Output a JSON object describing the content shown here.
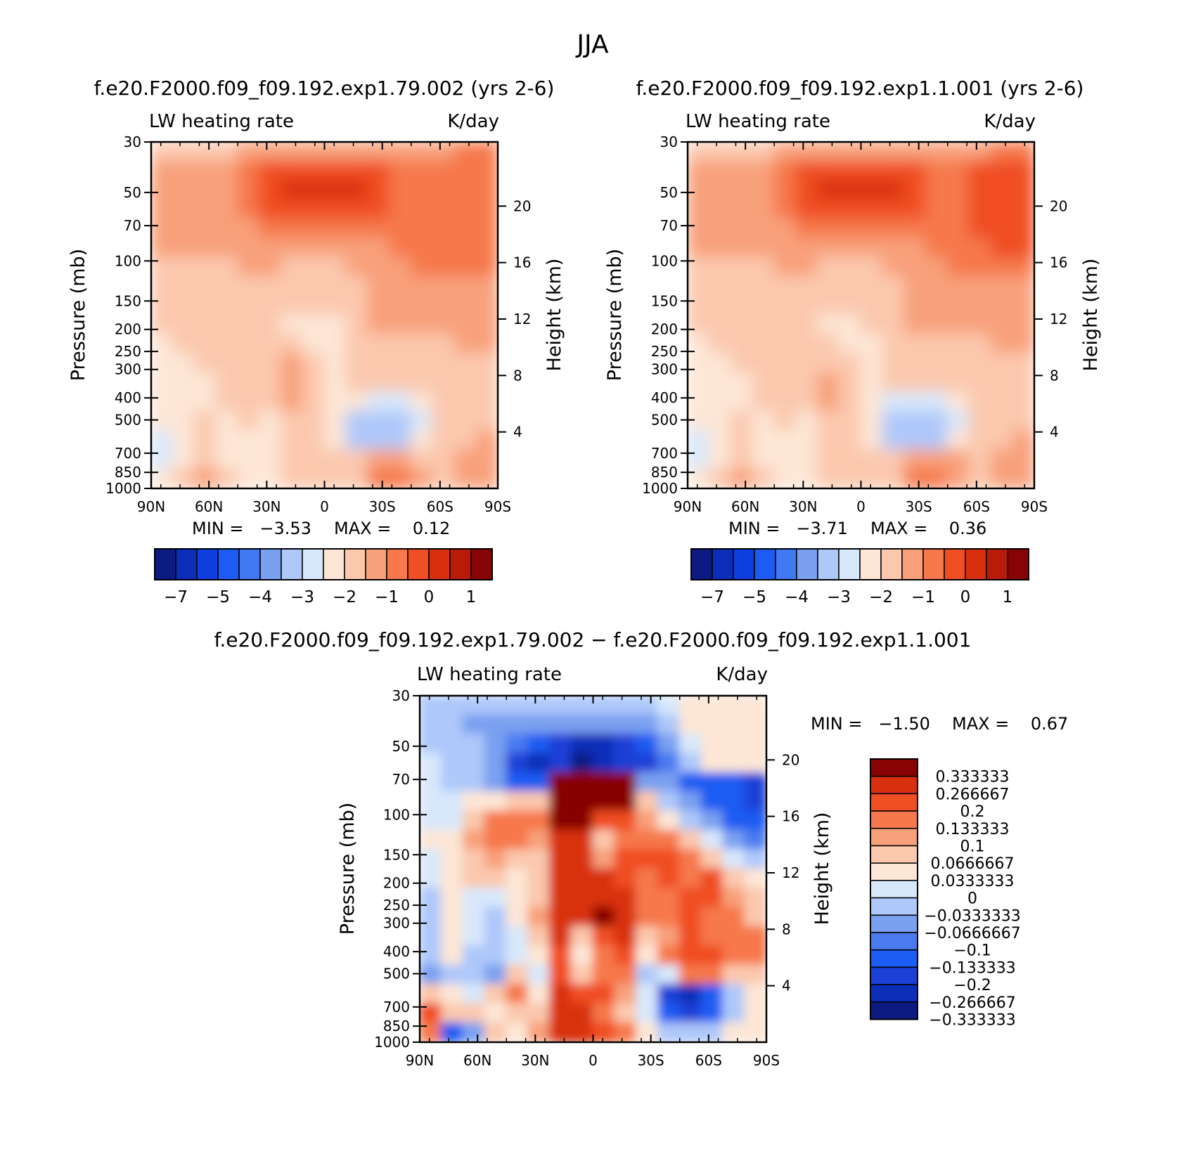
{
  "figure_title": "JJA",
  "colors": {
    "abs_palette": [
      "#0c1a82",
      "#0b2db8",
      "#0e3fe0",
      "#1c5cf2",
      "#4079f2",
      "#7aa0f0",
      "#aec8fa",
      "#d8e8fb",
      "#fde6d6",
      "#fbc8ae",
      "#f8a07a",
      "#f6784c",
      "#f04e23",
      "#d8300f",
      "#b81c09",
      "#880303"
    ],
    "diff_palette": [
      "#0c1a82",
      "#0b2db8",
      "#1c3fd6",
      "#1c5cf2",
      "#4a7af0",
      "#7aa0f0",
      "#aec8fa",
      "#d8e8fb",
      "#fde6d6",
      "#fbc8ae",
      "#f8a07a",
      "#f6784c",
      "#f04e23",
      "#d8300f",
      "#880303"
    ]
  },
  "chart_data": [
    {
      "type": "heatmap",
      "title": "f.e20.F2000.f09_f09.192.exp1.79.002 (yrs 2-6)",
      "left_label": "LW heating rate",
      "right_label": "K/day",
      "ylabel": "Pressure (mb)",
      "ylabel_right": "Height (km)",
      "x_ticks": [
        "90N",
        "60N",
        "30N",
        "0",
        "30S",
        "60S",
        "90S"
      ],
      "y_ticks": [
        "30",
        "50",
        "70",
        "100",
        "150",
        "200",
        "250",
        "300",
        "400",
        "500",
        "700",
        "850",
        "1000"
      ],
      "y_ticks_right": [
        "20",
        "16",
        "12",
        "8",
        "4"
      ],
      "ylim": [
        1000,
        30
      ],
      "min_text": "MIN =   -3.53",
      "max_text": "MAX =    0.12",
      "colorbar_levels": [
        "-7",
        "-5",
        "-4",
        "-3",
        "-2",
        "-1",
        "0",
        "1"
      ],
      "field": [
        [
          -1.6,
          -1.6,
          -1.6,
          -1.6,
          -1.4,
          -1.2,
          -1.1,
          -1.1,
          -1.1,
          -1.1,
          -1.3,
          -1.4,
          -1.4,
          -1.2,
          -1.0,
          -1.0
        ],
        [
          -1.2,
          -1.2,
          -1.2,
          -1.2,
          -0.8,
          -0.4,
          -0.2,
          -0.3,
          -0.4,
          -0.2,
          -0.5,
          -0.9,
          -0.7,
          -0.6,
          -0.6,
          -0.6
        ],
        [
          -1.2,
          -1.2,
          -1.2,
          -1.2,
          -0.8,
          -0.3,
          0.1,
          0.2,
          0.1,
          0.2,
          -0.4,
          -0.8,
          -0.7,
          -0.6,
          -0.6,
          -0.6
        ],
        [
          -1.2,
          -1.2,
          -1.2,
          -1.1,
          -0.8,
          -0.4,
          -0.4,
          -0.4,
          -0.4,
          -0.4,
          -0.4,
          -0.8,
          -0.7,
          -0.6,
          -0.6,
          -0.6
        ],
        [
          -1.2,
          -1.2,
          -1.2,
          -1.2,
          -1.1,
          -1.0,
          -1.0,
          -0.7,
          -0.9,
          -0.9,
          -1.0,
          -0.8,
          -0.7,
          -0.6,
          -0.6,
          -0.6
        ],
        [
          -1.3,
          -1.3,
          -1.3,
          -1.3,
          -1.3,
          -1.3,
          -1.3,
          -1.3,
          -1.3,
          -1.3,
          -1.3,
          -1.0,
          -0.8,
          -0.6,
          -0.6,
          -0.6
        ],
        [
          -1.6,
          -1.6,
          -1.6,
          -1.6,
          -1.5,
          -1.5,
          -1.6,
          -1.8,
          -1.6,
          -1.5,
          -1.4,
          -1.2,
          -1.0,
          -1.0,
          -1.0,
          -1.0
        ],
        [
          -1.8,
          -1.8,
          -1.7,
          -1.7,
          -1.6,
          -1.6,
          -1.7,
          -1.8,
          -1.7,
          -1.6,
          -1.4,
          -1.3,
          -1.2,
          -1.2,
          -1.2,
          -1.2
        ],
        [
          -1.9,
          -1.8,
          -1.8,
          -1.8,
          -1.7,
          -1.7,
          -1.8,
          -2.0,
          -1.9,
          -1.7,
          -1.5,
          -1.4,
          -1.3,
          -1.3,
          -1.3,
          -1.3
        ],
        [
          -2.0,
          -1.9,
          -1.9,
          -1.9,
          -1.8,
          -1.8,
          -2.2,
          -2.2,
          -2.1,
          -1.7,
          -1.5,
          -1.4,
          -1.4,
          -1.4,
          -1.4,
          -1.4
        ],
        [
          -2.1,
          -2.0,
          -2.0,
          -1.9,
          -1.9,
          -1.8,
          -1.8,
          -2.2,
          -2.3,
          -1.9,
          -1.6,
          -1.6,
          -1.6,
          -1.6,
          -1.5,
          -1.5
        ],
        [
          -2.3,
          -2.1,
          -2.0,
          -1.8,
          -1.9,
          -1.8,
          -1.5,
          -2.0,
          -2.1,
          -1.9,
          -1.7,
          -1.7,
          -1.7,
          -1.7,
          -1.6,
          -1.6
        ],
        [
          -2.3,
          -2.2,
          -2.1,
          -1.8,
          -2.0,
          -1.9,
          -1.4,
          -1.9,
          -2.1,
          -2.0,
          -1.8,
          -1.8,
          -1.8,
          -1.8,
          -1.7,
          -1.7
        ],
        [
          -2.3,
          -2.2,
          -2.1,
          -1.9,
          -2.0,
          -2.0,
          -1.5,
          -2.0,
          -2.1,
          -2.5,
          -2.8,
          -2.7,
          -2.3,
          -1.8,
          -1.7,
          -1.7
        ],
        [
          -2.5,
          -2.3,
          -2.0,
          -2.1,
          -2.0,
          -2.1,
          -1.6,
          -2.0,
          -2.2,
          -3.2,
          -3.3,
          -3.2,
          -2.6,
          -1.9,
          -1.7,
          -1.6
        ],
        [
          -2.7,
          -2.4,
          -2.0,
          -2.2,
          -2.2,
          -2.2,
          -1.8,
          -2.0,
          -2.2,
          -3.1,
          -3.3,
          -3.1,
          -2.5,
          -1.9,
          -1.6,
          -1.5
        ],
        [
          -2.6,
          -2.3,
          -1.6,
          -2.1,
          -2.3,
          -2.2,
          -1.9,
          -2.0,
          -2.0,
          -1.9,
          -1.4,
          -1.3,
          -1.6,
          -1.8,
          -1.5,
          -1.5
        ],
        [
          -2.2,
          -2.0,
          -1.3,
          -2.0,
          -2.5,
          -2.1,
          -2.0,
          -1.9,
          -1.7,
          -1.6,
          -1.0,
          -0.8,
          -1.2,
          -1.6,
          -1.4,
          -1.4
        ]
      ]
    },
    {
      "type": "heatmap",
      "title": "f.e20.F2000.f09_f09.192.exp1.1.001 (yrs 2-6)",
      "left_label": "LW heating rate",
      "right_label": "K/day",
      "ylabel": "Pressure (mb)",
      "ylabel_right": "Height (km)",
      "x_ticks": [
        "90N",
        "60N",
        "30N",
        "0",
        "30S",
        "60S",
        "90S"
      ],
      "y_ticks": [
        "30",
        "50",
        "70",
        "100",
        "150",
        "200",
        "250",
        "300",
        "400",
        "500",
        "700",
        "850",
        "1000"
      ],
      "y_ticks_right": [
        "20",
        "16",
        "12",
        "8",
        "4"
      ],
      "ylim": [
        1000,
        30
      ],
      "min_text": "MIN =   -3.71",
      "max_text": "MAX =    0.36",
      "colorbar_levels": [
        "-7",
        "-5",
        "-4",
        "-3",
        "-2",
        "-1",
        "0",
        "1"
      ],
      "field": [
        [
          -1.6,
          -1.6,
          -1.6,
          -1.6,
          -1.4,
          -1.2,
          -1.1,
          -1.1,
          -1.1,
          -1.1,
          -1.3,
          -1.4,
          -1.4,
          -1.2,
          -1.0,
          -1.0
        ],
        [
          -1.2,
          -1.2,
          -1.2,
          -1.2,
          -0.8,
          -0.4,
          -0.2,
          -0.2,
          -0.2,
          -0.2,
          -0.5,
          -0.8,
          -0.6,
          -0.5,
          -0.5,
          -0.5
        ],
        [
          -1.2,
          -1.2,
          -1.2,
          -1.2,
          -0.8,
          -0.3,
          0.1,
          0.2,
          0.2,
          0.1,
          -0.4,
          -0.8,
          -0.6,
          -0.5,
          -0.5,
          -0.5
        ],
        [
          -1.2,
          -1.2,
          -1.2,
          -1.1,
          -0.8,
          -0.5,
          -0.4,
          -0.4,
          -0.4,
          -0.4,
          -0.5,
          -0.8,
          -0.6,
          -0.5,
          -0.5,
          -0.5
        ],
        [
          -1.2,
          -1.2,
          -1.2,
          -1.2,
          -1.1,
          -1.0,
          -1.0,
          -0.9,
          -1.0,
          -1.0,
          -0.9,
          -0.8,
          -0.6,
          -0.5,
          -0.5,
          -0.5
        ],
        [
          -1.3,
          -1.3,
          -1.3,
          -1.3,
          -1.3,
          -1.3,
          -1.3,
          -1.3,
          -1.3,
          -1.3,
          -1.2,
          -1.0,
          -0.7,
          -0.6,
          -0.5,
          -0.5
        ],
        [
          -1.6,
          -1.6,
          -1.6,
          -1.6,
          -1.5,
          -1.5,
          -1.6,
          -1.7,
          -1.6,
          -1.5,
          -1.4,
          -1.2,
          -1.0,
          -0.9,
          -0.9,
          -0.9
        ],
        [
          -1.8,
          -1.8,
          -1.7,
          -1.7,
          -1.6,
          -1.7,
          -1.8,
          -1.8,
          -1.7,
          -1.6,
          -1.4,
          -1.3,
          -1.2,
          -1.1,
          -1.1,
          -1.1
        ],
        [
          -1.9,
          -1.8,
          -1.8,
          -1.8,
          -1.7,
          -1.8,
          -1.9,
          -2.0,
          -1.9,
          -1.7,
          -1.5,
          -1.4,
          -1.3,
          -1.3,
          -1.3,
          -1.3
        ],
        [
          -2.0,
          -1.9,
          -1.9,
          -1.9,
          -1.8,
          -1.9,
          -2.2,
          -2.1,
          -2.0,
          -1.7,
          -1.5,
          -1.4,
          -1.4,
          -1.4,
          -1.4,
          -1.4
        ],
        [
          -2.1,
          -2.0,
          -2.0,
          -1.9,
          -1.9,
          -1.9,
          -1.9,
          -2.1,
          -2.2,
          -1.9,
          -1.6,
          -1.6,
          -1.6,
          -1.6,
          -1.5,
          -1.5
        ],
        [
          -2.3,
          -2.1,
          -2.0,
          -1.8,
          -1.9,
          -1.9,
          -1.6,
          -1.9,
          -2.1,
          -1.9,
          -1.7,
          -1.7,
          -1.7,
          -1.7,
          -1.6,
          -1.6
        ],
        [
          -2.3,
          -2.2,
          -2.1,
          -1.8,
          -2.0,
          -1.9,
          -1.4,
          -1.8,
          -2.1,
          -2.0,
          -1.8,
          -1.8,
          -1.8,
          -1.8,
          -1.7,
          -1.7
        ],
        [
          -2.3,
          -2.2,
          -2.1,
          -1.9,
          -2.0,
          -2.0,
          -1.5,
          -1.9,
          -2.2,
          -2.6,
          -2.8,
          -2.7,
          -2.3,
          -1.8,
          -1.7,
          -1.7
        ],
        [
          -2.5,
          -2.3,
          -2.0,
          -2.1,
          -2.0,
          -2.1,
          -1.6,
          -1.9,
          -2.3,
          -3.3,
          -3.3,
          -3.2,
          -2.6,
          -1.9,
          -1.7,
          -1.6
        ],
        [
          -2.7,
          -2.4,
          -2.0,
          -2.2,
          -2.2,
          -2.2,
          -1.7,
          -1.9,
          -2.3,
          -3.2,
          -3.3,
          -3.1,
          -2.5,
          -1.9,
          -1.6,
          -1.5
        ],
        [
          -2.6,
          -2.3,
          -1.7,
          -2.1,
          -2.3,
          -2.2,
          -1.9,
          -1.9,
          -2.0,
          -1.9,
          -1.4,
          -1.2,
          -1.5,
          -1.8,
          -1.5,
          -1.5
        ],
        [
          -2.2,
          -2.0,
          -1.3,
          -2.0,
          -2.5,
          -2.1,
          -2.0,
          -1.9,
          -1.8,
          -1.6,
          -1.0,
          -0.8,
          -1.2,
          -1.6,
          -1.4,
          -1.4
        ]
      ]
    },
    {
      "type": "heatmap",
      "title": "f.e20.F2000.f09_f09.192.exp1.79.002 - f.e20.F2000.f09_f09.192.exp1.1.001",
      "left_label": "LW heating rate",
      "right_label": "K/day",
      "ylabel": "Pressure (mb)",
      "ylabel_right": "Height (km)",
      "x_ticks": [
        "90N",
        "60N",
        "30N",
        "0",
        "30S",
        "60S",
        "90S"
      ],
      "y_ticks": [
        "30",
        "50",
        "70",
        "100",
        "150",
        "200",
        "250",
        "300",
        "400",
        "500",
        "700",
        "850",
        "1000"
      ],
      "y_ticks_right": [
        "20",
        "16",
        "12",
        "8",
        "4"
      ],
      "ylim": [
        1000,
        30
      ],
      "min_text": "MIN =   -1.50",
      "max_text": "MAX =    0.67",
      "colorbar_levels": [
        "0.333333",
        "0.266667",
        "0.2",
        "0.133333",
        "0.1",
        "0.0666667",
        "0.0333333",
        "0",
        "-0.0333333",
        "-0.0666667",
        "-0.1",
        "-0.133333",
        "-0.2",
        "-0.266667",
        "-0.333333"
      ],
      "field": [
        [
          -0.05,
          -0.05,
          -0.04,
          -0.05,
          -0.06,
          -0.06,
          -0.05,
          -0.05,
          -0.05,
          -0.06,
          -0.05,
          -0.03,
          0.02,
          0.02,
          0.01,
          0.01
        ],
        [
          -0.04,
          -0.06,
          -0.08,
          -0.07,
          -0.07,
          -0.08,
          -0.07,
          -0.08,
          -0.09,
          -0.09,
          -0.07,
          -0.04,
          0.01,
          0.02,
          0.02,
          0.02
        ],
        [
          -0.04,
          -0.05,
          -0.06,
          -0.07,
          -0.12,
          -0.14,
          -0.22,
          -0.32,
          -0.32,
          -0.22,
          -0.14,
          -0.09,
          -0.02,
          0.02,
          0.02,
          0.02
        ],
        [
          -0.03,
          -0.04,
          -0.05,
          -0.09,
          -0.24,
          -0.3,
          -0.26,
          -0.34,
          -0.32,
          -0.26,
          -0.22,
          -0.12,
          -0.04,
          0.0,
          0.01,
          0.01
        ],
        [
          -0.03,
          -0.04,
          -0.05,
          -0.08,
          -0.14,
          -0.16,
          0.4,
          0.3,
          0.35,
          0.3,
          -0.08,
          -0.09,
          -0.14,
          -0.16,
          -0.2,
          -0.22
        ],
        [
          -0.02,
          -0.03,
          0.0,
          0.02,
          0.06,
          0.05,
          0.4,
          0.4,
          0.32,
          0.28,
          0.05,
          -0.04,
          -0.1,
          -0.14,
          -0.2,
          -0.24
        ],
        [
          -0.02,
          -0.01,
          0.05,
          0.1,
          0.12,
          0.1,
          0.3,
          0.28,
          0.16,
          0.16,
          0.08,
          0.02,
          -0.04,
          -0.08,
          -0.14,
          -0.2
        ],
        [
          0.0,
          0.03,
          0.08,
          0.12,
          0.1,
          0.08,
          0.22,
          0.26,
          0.06,
          0.12,
          0.12,
          0.12,
          0.06,
          -0.02,
          -0.08,
          -0.12
        ],
        [
          -0.01,
          0.02,
          0.06,
          0.08,
          0.06,
          0.04,
          0.2,
          0.24,
          0.08,
          0.14,
          0.14,
          0.16,
          0.12,
          0.04,
          -0.03,
          -0.06
        ],
        [
          -0.02,
          0.0,
          0.04,
          0.04,
          0.03,
          0.04,
          0.22,
          0.22,
          0.2,
          0.18,
          0.12,
          0.14,
          0.12,
          0.14,
          0.06,
          0.02
        ],
        [
          -0.04,
          0.0,
          -0.03,
          -0.03,
          0.03,
          0.05,
          0.24,
          0.22,
          0.26,
          0.2,
          0.12,
          0.1,
          0.14,
          0.14,
          0.08,
          0.04
        ],
        [
          -0.05,
          0.0,
          -0.03,
          -0.04,
          0.03,
          0.08,
          0.24,
          0.24,
          0.28,
          0.22,
          0.1,
          0.1,
          0.16,
          0.12,
          0.1,
          0.06
        ],
        [
          -0.06,
          0.02,
          -0.02,
          -0.05,
          -0.02,
          0.05,
          0.22,
          0.04,
          0.18,
          0.2,
          0.05,
          0.08,
          0.14,
          0.12,
          0.1,
          0.1
        ],
        [
          -0.05,
          0.0,
          -0.04,
          -0.06,
          -0.02,
          0.03,
          0.18,
          0.02,
          0.12,
          0.16,
          0.0,
          0.12,
          0.14,
          0.14,
          0.12,
          0.12
        ],
        [
          -0.08,
          -0.04,
          -0.06,
          -0.08,
          0.04,
          -0.02,
          0.16,
          0.05,
          0.12,
          0.1,
          -0.05,
          -0.02,
          0.12,
          0.1,
          0.06,
          0.05
        ],
        [
          0.06,
          0.02,
          -0.02,
          0.04,
          0.12,
          0.0,
          0.2,
          0.16,
          0.14,
          0.08,
          -0.03,
          -0.24,
          -0.28,
          -0.2,
          -0.05,
          0.02
        ],
        [
          0.18,
          0.06,
          0.04,
          0.02,
          0.04,
          0.04,
          0.22,
          0.24,
          0.1,
          0.06,
          -0.02,
          -0.2,
          -0.26,
          -0.18,
          -0.05,
          0.0
        ],
        [
          0.1,
          -0.2,
          -0.1,
          0.06,
          0.02,
          0.08,
          0.2,
          0.24,
          0.14,
          0.1,
          0.0,
          -0.06,
          -0.06,
          -0.05,
          0.0,
          0.0
        ]
      ]
    }
  ]
}
